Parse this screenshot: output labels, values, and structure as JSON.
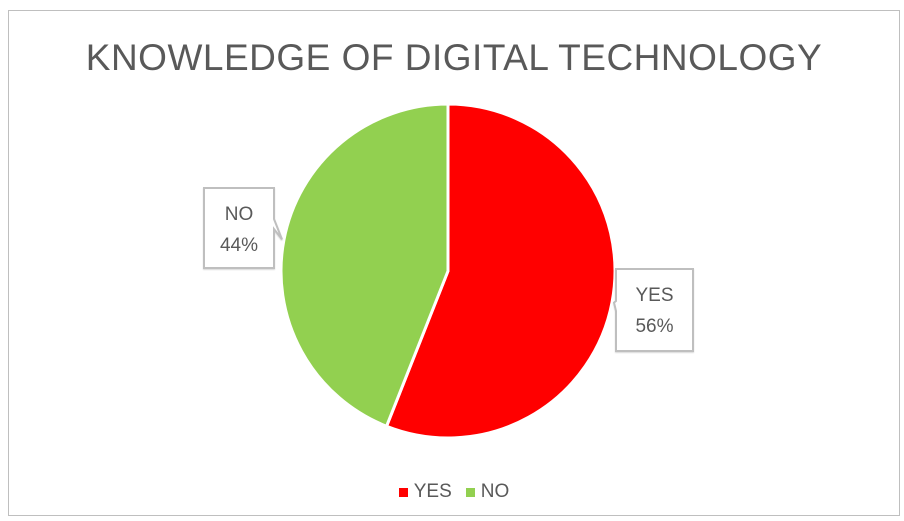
{
  "chart_data": {
    "type": "pie",
    "title": "KNOWLEDGE OF DIGITAL TECHNOLOGY",
    "categories": [
      "YES",
      "NO"
    ],
    "values": [
      56,
      44
    ],
    "colors": [
      "#ff0000",
      "#92d050"
    ],
    "data_labels": [
      {
        "category": "YES",
        "value": "56%"
      },
      {
        "category": "NO",
        "value": "44%"
      }
    ],
    "legend": {
      "placement": "bottom",
      "entries": [
        "YES",
        "NO"
      ]
    }
  }
}
